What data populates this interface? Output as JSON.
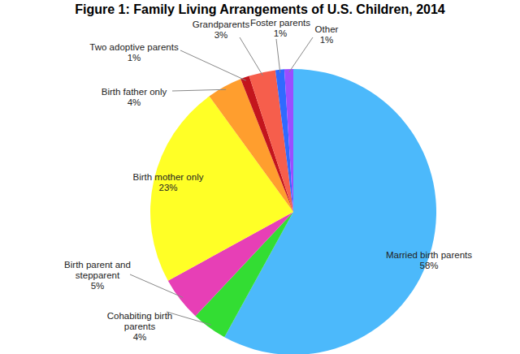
{
  "chart_data": {
    "type": "pie",
    "title": "Figure 1: Family Living Arrangements of U.S. Children, 2014",
    "categories": [
      "Married birth parents",
      "Cohabiting birth parents",
      "Birth parent and stepparent",
      "Birth mother only",
      "Birth father only",
      "Two adoptive parents",
      "Grandparents",
      "Foster parents",
      "Other"
    ],
    "values": [
      58,
      4,
      5,
      23,
      4,
      1,
      3,
      1,
      1
    ],
    "value_labels": [
      "58%",
      "4%",
      "5%",
      "23%",
      "4%",
      "1%",
      "3%",
      "1%",
      "1%"
    ],
    "colors": [
      "#4cb9fb",
      "#33dd33",
      "#e73fb6",
      "#ffff26",
      "#ff9e2e",
      "#c3151d",
      "#f65e4c",
      "#2f6aff",
      "#9c4dff"
    ],
    "data_labels": true
  }
}
